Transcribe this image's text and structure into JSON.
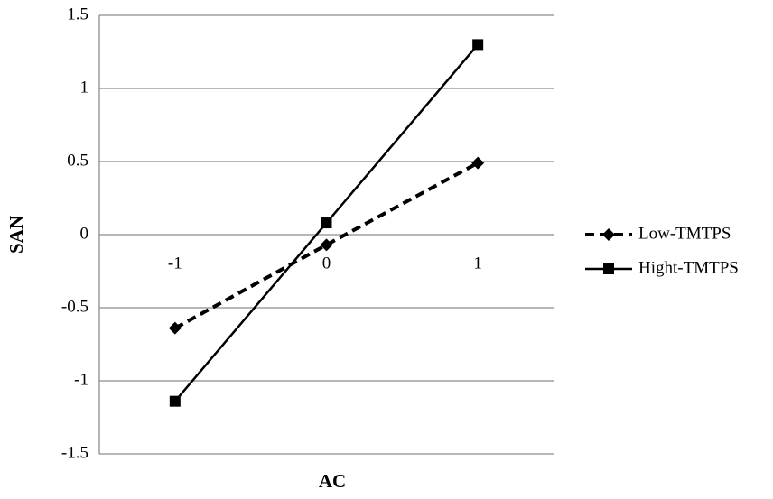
{
  "chart_data": {
    "type": "line",
    "x_label": "AC",
    "y_label": "SAN",
    "categories": [
      "-1",
      "0",
      "1"
    ],
    "series": [
      {
        "name": "Low-TMTPS",
        "color": "#000000",
        "line_style": "dashed",
        "marker": "diamond",
        "values": [
          -0.64,
          -0.07,
          0.49
        ]
      },
      {
        "name": "Hight-TMTPS",
        "color": "#000000",
        "line_style": "solid",
        "marker": "square",
        "values": [
          -1.14,
          0.08,
          1.3
        ]
      }
    ],
    "ylim": [
      -1.5,
      1.5
    ],
    "yticks": [
      -1.5,
      -1,
      -0.5,
      0,
      0.5,
      1,
      1.5
    ],
    "grid": true,
    "legend": "right"
  }
}
